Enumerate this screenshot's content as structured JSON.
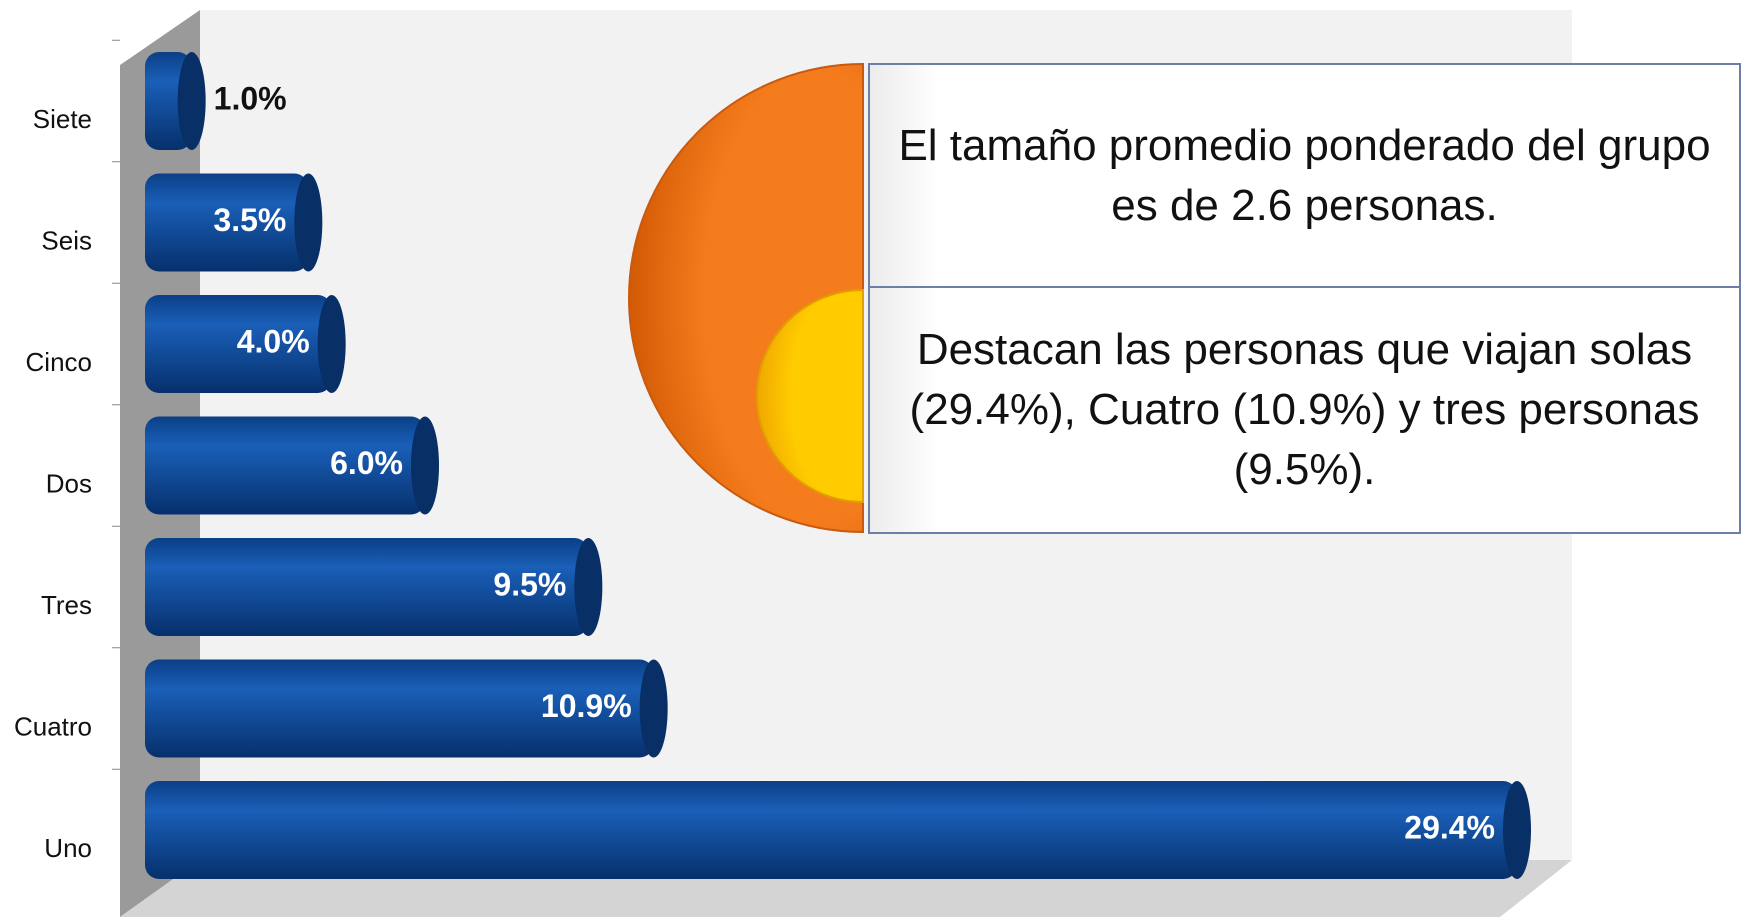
{
  "chart_data": {
    "type": "bar",
    "orientation": "horizontal",
    "categories": [
      "Siete",
      "Seis",
      "Cinco",
      "Dos",
      "Tres",
      "Cuatro",
      "Uno"
    ],
    "values": [
      1.0,
      3.5,
      4.0,
      6.0,
      9.5,
      10.9,
      29.4
    ],
    "value_labels": [
      "1.0%",
      "3.5%",
      "4.0%",
      "6.0%",
      "9.5%",
      "10.9%",
      "29.4%"
    ],
    "color": "#0e4c9e",
    "annotations": [
      "El tamaño promedio ponderado del grupo es de 2.6 personas.",
      "Destacan las personas que viajan solas (29.4%), Cuatro (10.9%) y tres personas (9.5%)."
    ]
  }
}
